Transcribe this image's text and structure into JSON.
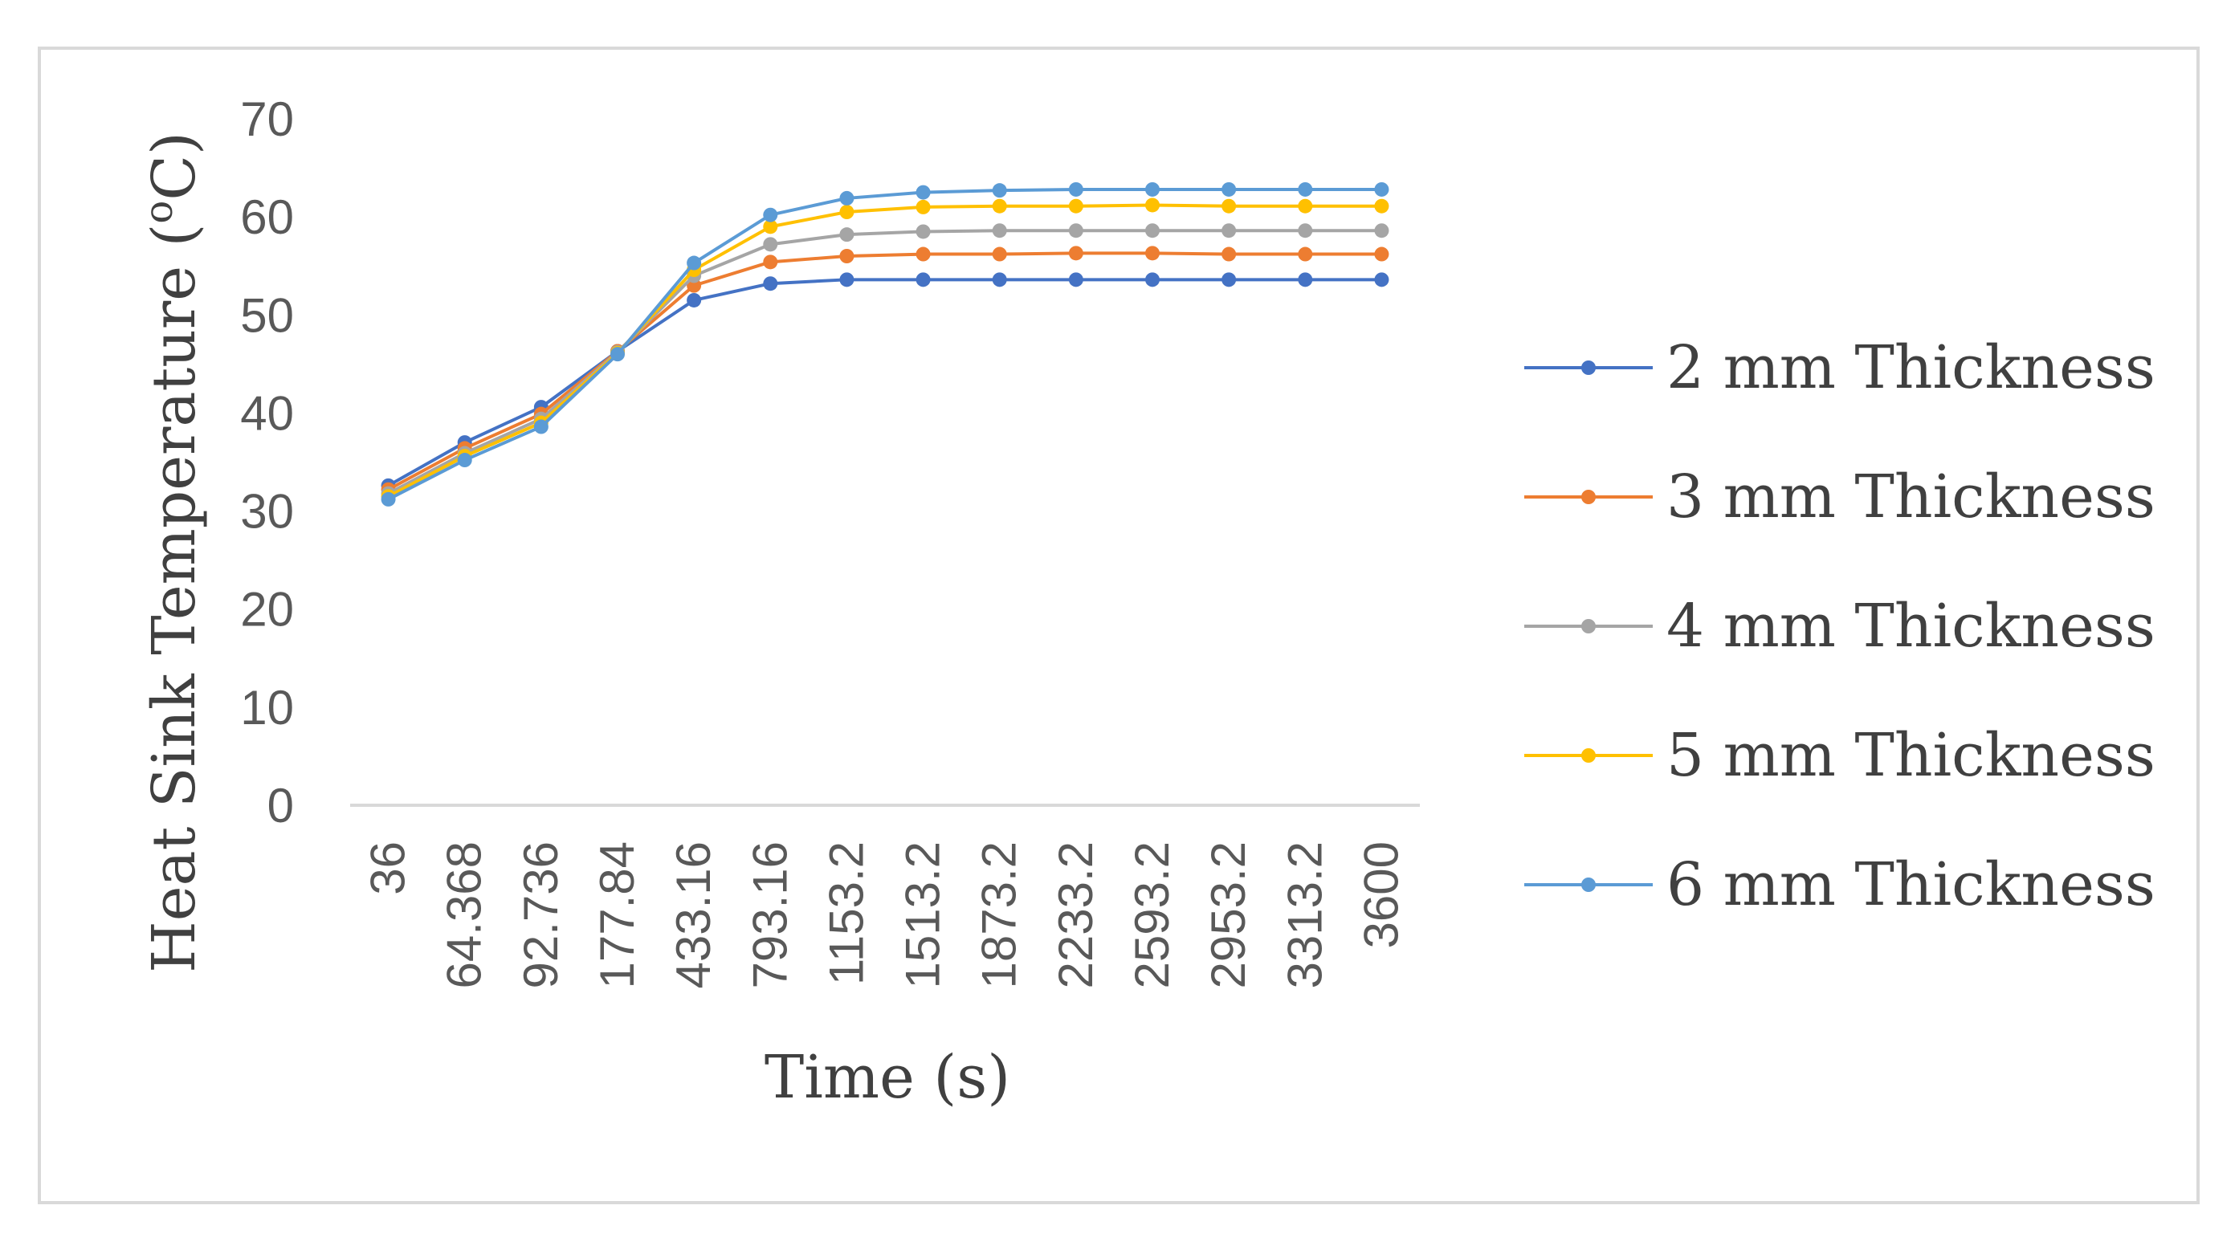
{
  "chart_data": {
    "type": "line",
    "xlabel": "Time (s)",
    "ylabel_prefix": "Heat Sink Temperature (",
    "ylabel_sup": "o",
    "ylabel_suffix": "C)",
    "ylim": [
      0,
      70
    ],
    "yticks": [
      "0",
      "10",
      "20",
      "30",
      "40",
      "50",
      "60",
      "70"
    ],
    "categories": [
      "36",
      "64.368",
      "92.736",
      "177.84",
      "433.16",
      "793.16",
      "1153.2",
      "1513.2",
      "1873.2",
      "2233.2",
      "2593.2",
      "2953.2",
      "3313.2",
      "3600"
    ],
    "grid": false,
    "legend_position": "right",
    "series": [
      {
        "name": "2 mm Thickness",
        "color": "#4472C4",
        "values": [
          32.6,
          37.0,
          40.6,
          46.3,
          51.5,
          53.2,
          53.6,
          53.6,
          53.6,
          53.6,
          53.6,
          53.6,
          53.6,
          53.6
        ]
      },
      {
        "name": "3 mm Thickness",
        "color": "#ED7D31",
        "values": [
          32.2,
          36.4,
          39.9,
          46.3,
          53.0,
          55.4,
          56.0,
          56.2,
          56.2,
          56.3,
          56.3,
          56.2,
          56.2,
          56.2
        ]
      },
      {
        "name": "4 mm Thickness",
        "color": "#A5A5A5",
        "values": [
          31.8,
          35.9,
          39.4,
          46.2,
          54.0,
          57.2,
          58.2,
          58.5,
          58.6,
          58.6,
          58.6,
          58.6,
          58.6,
          58.6
        ]
      },
      {
        "name": "5 mm Thickness",
        "color": "#FFC000",
        "values": [
          31.5,
          35.6,
          39.0,
          46.1,
          54.6,
          59.0,
          60.5,
          61.0,
          61.1,
          61.1,
          61.2,
          61.1,
          61.1,
          61.1
        ]
      },
      {
        "name": "6 mm Thickness",
        "color": "#5B9BD5",
        "values": [
          31.2,
          35.2,
          38.6,
          46.0,
          55.3,
          60.2,
          61.9,
          62.5,
          62.7,
          62.8,
          62.8,
          62.8,
          62.8,
          62.8
        ]
      }
    ]
  }
}
